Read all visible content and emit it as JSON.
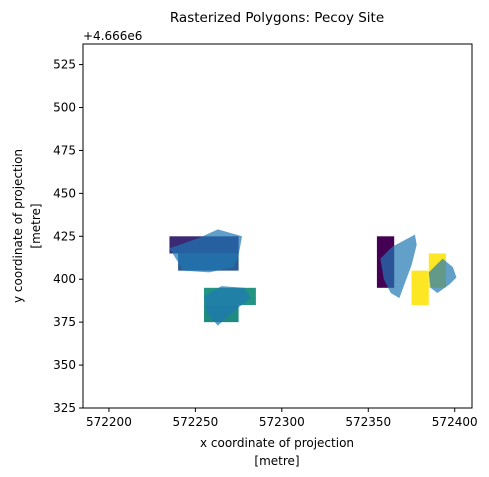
{
  "chart_data": {
    "type": "raster_with_polygons",
    "title": "Rasterized Polygons: Pecoy Site",
    "xlabel": [
      "x coordinate of projection",
      "[metre]"
    ],
    "ylabel": [
      "y coordinate of projection",
      "[metre]"
    ],
    "x_tick_labels": [
      "572200",
      "572250",
      "572300",
      "572350",
      "572400"
    ],
    "x_ticks": [
      572200,
      572250,
      572300,
      572350,
      572400
    ],
    "y_tick_labels": [
      "325",
      "350",
      "375",
      "400",
      "425",
      "450",
      "475",
      "500",
      "525"
    ],
    "y_ticks": [
      325,
      350,
      375,
      400,
      425,
      450,
      475,
      500,
      525
    ],
    "y_offset_label": "+4.666e6",
    "y_offset": 4666000,
    "xlim": [
      572185,
      572410
    ],
    "ylim": [
      325,
      537
    ],
    "raster_cells": [
      {
        "x0": 572235,
        "x1": 572275,
        "y0": 415,
        "y1": 425,
        "color": "#3b2a73"
      },
      {
        "x0": 572240,
        "x1": 572275,
        "y0": 405,
        "y1": 415,
        "color": "#2d5c92"
      },
      {
        "x0": 572255,
        "x1": 572285,
        "y0": 385,
        "y1": 395,
        "color": "#239482"
      },
      {
        "x0": 572255,
        "x1": 572275,
        "y0": 375,
        "y1": 385,
        "color": "#1f8a82"
      },
      {
        "x0": 572355,
        "x1": 572365,
        "y0": 395,
        "y1": 425,
        "color": "#440154"
      },
      {
        "x0": 572375,
        "x1": 572385,
        "y0": 385,
        "y1": 405,
        "color": "#fde725"
      },
      {
        "x0": 572385,
        "x1": 572395,
        "y0": 395,
        "y1": 415,
        "color": "#fde725"
      }
    ],
    "polygons": {
      "color": "#1f77b4",
      "opacity": 0.7,
      "shapes": [
        [
          [
            572235,
            418
          ],
          [
            572252,
            424
          ],
          [
            572263,
            429
          ],
          [
            572277,
            425
          ],
          [
            572275,
            414
          ],
          [
            572272,
            407
          ],
          [
            572258,
            404
          ],
          [
            572243,
            405
          ]
        ],
        [
          [
            572255,
            390
          ],
          [
            572265,
            396
          ],
          [
            572278,
            395
          ],
          [
            572282,
            389
          ],
          [
            572273,
            382
          ],
          [
            572263,
            373
          ],
          [
            572257,
            380
          ]
        ],
        [
          [
            572357,
            412
          ],
          [
            572364,
            419
          ],
          [
            572377,
            426
          ],
          [
            572378,
            420
          ],
          [
            572375,
            408
          ],
          [
            572372,
            400
          ],
          [
            572368,
            389
          ],
          [
            572363,
            392
          ],
          [
            572359,
            400
          ]
        ],
        [
          [
            572385,
            404
          ],
          [
            572390,
            409
          ],
          [
            572393,
            412
          ],
          [
            572399,
            407
          ],
          [
            572401,
            401
          ],
          [
            572397,
            397
          ],
          [
            572390,
            392
          ],
          [
            572386,
            395
          ]
        ]
      ]
    }
  }
}
